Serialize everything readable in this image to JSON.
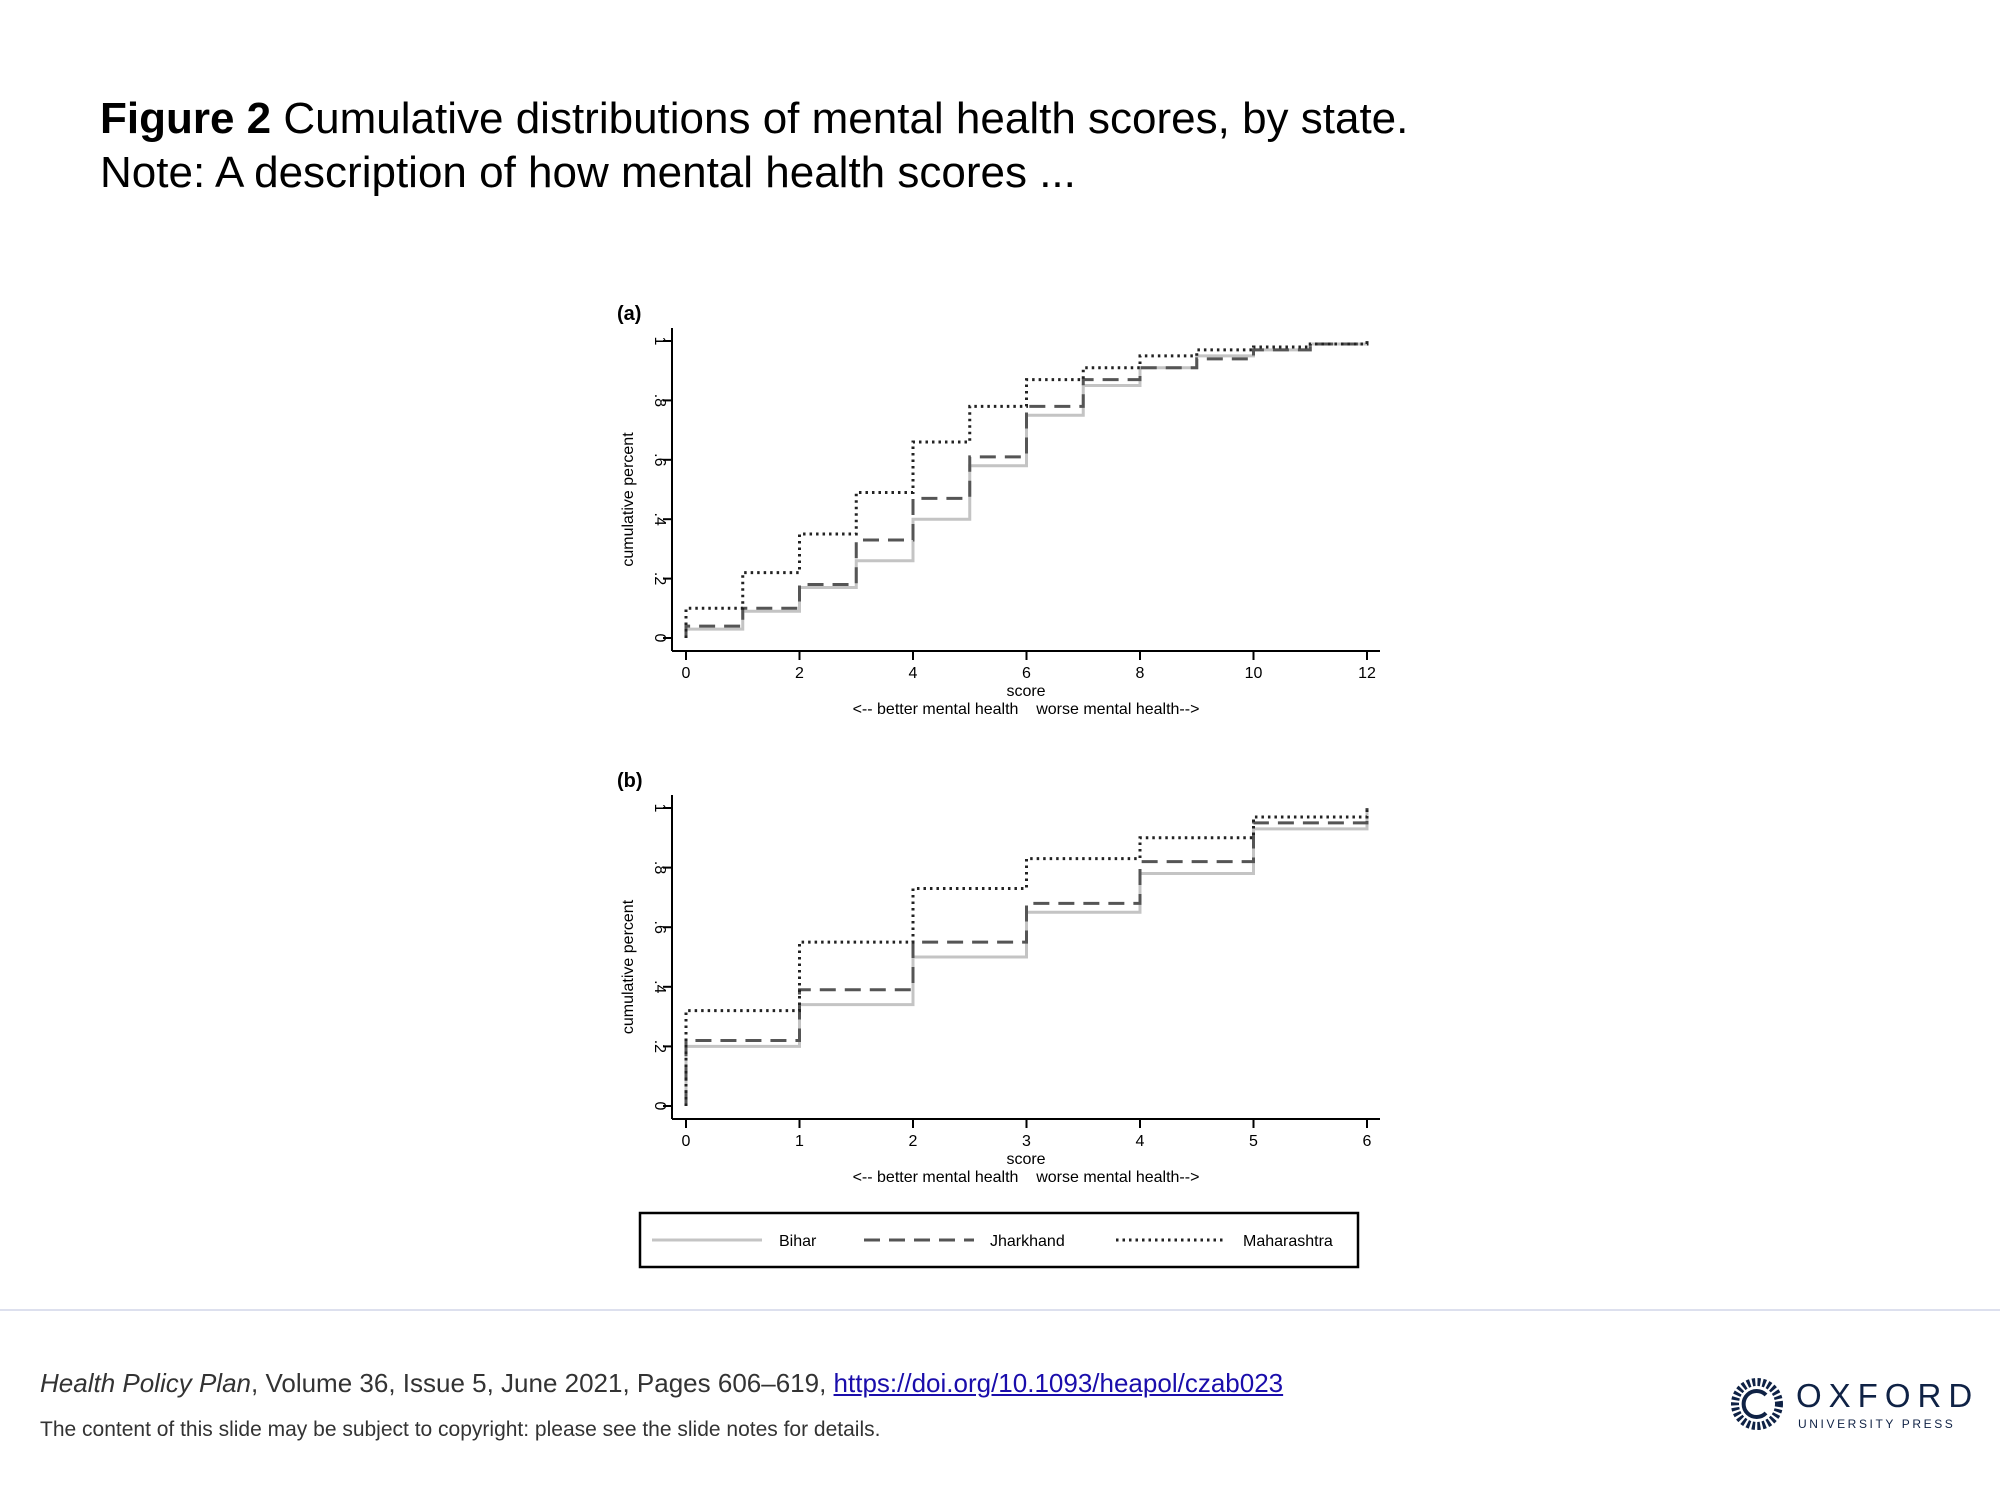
{
  "caption": {
    "figure_label": "Figure 2",
    "title": "Cumulative distributions of mental health scores, by state.",
    "note": "Note: A description of how mental health scores ..."
  },
  "chart_data": [
    {
      "type": "line",
      "panel_label": "(a)",
      "xlabel": "score",
      "xlabel2": "<-- better mental health    worse mental health-->",
      "ylabel": "cumulative percent",
      "xlim": [
        0,
        12
      ],
      "ylim": [
        0,
        1
      ],
      "xticks": [
        "0",
        "2",
        "4",
        "6",
        "8",
        "10",
        "12"
      ],
      "xtick_values": [
        0,
        2,
        4,
        6,
        8,
        10,
        12
      ],
      "yticks": [
        "0",
        ".2",
        ".4",
        ".6",
        ".8",
        "1"
      ],
      "ytick_values": [
        0,
        0.2,
        0.4,
        0.6,
        0.8,
        1
      ],
      "grid": false,
      "step": true,
      "x": [
        0,
        1,
        2,
        3,
        4,
        5,
        6,
        7,
        8,
        9,
        10,
        11,
        12
      ],
      "series": [
        {
          "name": "Bihar",
          "values": [
            0.03,
            0.09,
            0.17,
            0.26,
            0.4,
            0.58,
            0.75,
            0.85,
            0.91,
            0.95,
            0.97,
            0.99,
            1.0
          ]
        },
        {
          "name": "Jharkhand",
          "values": [
            0.04,
            0.1,
            0.18,
            0.33,
            0.47,
            0.61,
            0.78,
            0.87,
            0.91,
            0.94,
            0.97,
            0.99,
            1.0
          ]
        },
        {
          "name": "Maharashtra",
          "values": [
            0.1,
            0.22,
            0.35,
            0.49,
            0.66,
            0.78,
            0.87,
            0.91,
            0.95,
            0.97,
            0.98,
            0.99,
            1.0
          ]
        }
      ]
    },
    {
      "type": "line",
      "panel_label": "(b)",
      "xlabel": "score",
      "xlabel2": "<-- better mental health    worse mental health-->",
      "ylabel": "cumulative percent",
      "xlim": [
        0,
        6
      ],
      "ylim": [
        0,
        1
      ],
      "xticks": [
        "0",
        "1",
        "2",
        "3",
        "4",
        "5",
        "6"
      ],
      "xtick_values": [
        0,
        1,
        2,
        3,
        4,
        5,
        6
      ],
      "yticks": [
        "0",
        ".2",
        ".4",
        ".6",
        ".8",
        "1"
      ],
      "ytick_values": [
        0,
        0.2,
        0.4,
        0.6,
        0.8,
        1
      ],
      "grid": false,
      "step": true,
      "x": [
        0,
        1,
        2,
        3,
        4,
        5,
        6
      ],
      "series": [
        {
          "name": "Bihar",
          "values": [
            0.2,
            0.34,
            0.5,
            0.65,
            0.78,
            0.93,
            1.0
          ]
        },
        {
          "name": "Jharkhand",
          "values": [
            0.22,
            0.39,
            0.55,
            0.68,
            0.82,
            0.95,
            1.0
          ]
        },
        {
          "name": "Maharashtra",
          "values": [
            0.32,
            0.55,
            0.73,
            0.83,
            0.9,
            0.97,
            1.0
          ]
        }
      ]
    }
  ],
  "legend": {
    "position": "bottom",
    "entries": [
      {
        "label": "Bihar",
        "style": "solid",
        "color": "#c4c4c4"
      },
      {
        "label": "Jharkhand",
        "style": "dashed",
        "color": "#555555"
      },
      {
        "label": "Maharashtra",
        "style": "dotted",
        "color": "#222222"
      }
    ]
  },
  "footer": {
    "journal": "Health Policy Plan",
    "citation_rest": ", Volume 36, Issue 5, June 2021, Pages 606–619, ",
    "doi": "https://doi.org/10.1093/heapol/czab023",
    "copyright": "The content of this slide may be subject to copyright: please see the slide notes for details.",
    "logo_word": "OXFORD",
    "logo_sub": "UNIVERSITY PRESS"
  },
  "colors": {
    "divider": "#dde0ee",
    "link": "#1a0dab",
    "brand": "#0f2245"
  }
}
